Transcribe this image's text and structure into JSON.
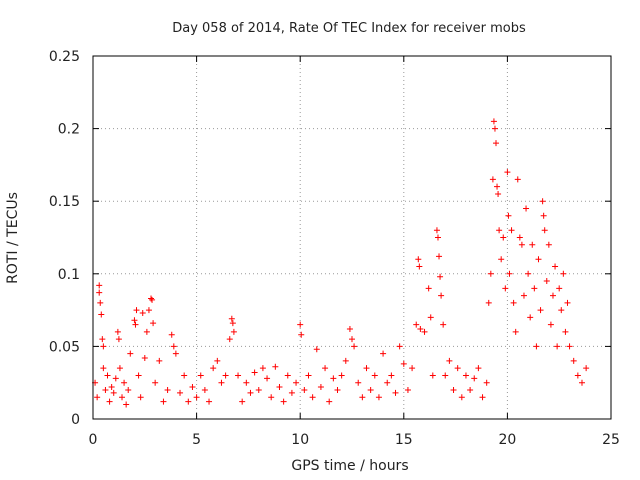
{
  "chart_data": {
    "type": "scatter",
    "title": "Day 058 of 2014, Rate Of TEC Index for receiver mobs",
    "xlabel": "GPS time / hours",
    "ylabel": "ROTI / TECUs",
    "xlim": [
      0,
      25
    ],
    "ylim": [
      0,
      0.25
    ],
    "x_ticks": [
      "0",
      "5",
      "10",
      "15",
      "20",
      "25"
    ],
    "y_ticks": [
      "0",
      "0.05",
      "0.1",
      "0.15",
      "0.2",
      "0.25"
    ],
    "grid": true,
    "marker": "+",
    "color": "#ff0000",
    "series": [
      {
        "points": [
          [
            0.1,
            0.025
          ],
          [
            0.2,
            0.015
          ],
          [
            0.3,
            0.092
          ],
          [
            0.3,
            0.087
          ],
          [
            0.35,
            0.08
          ],
          [
            0.4,
            0.072
          ],
          [
            0.45,
            0.055
          ],
          [
            0.5,
            0.05
          ],
          [
            0.5,
            0.035
          ],
          [
            0.6,
            0.02
          ],
          [
            0.7,
            0.03
          ],
          [
            0.8,
            0.012
          ],
          [
            0.9,
            0.022
          ],
          [
            1.0,
            0.018
          ],
          [
            1.1,
            0.028
          ],
          [
            1.2,
            0.06
          ],
          [
            1.25,
            0.055
          ],
          [
            1.3,
            0.035
          ],
          [
            1.4,
            0.015
          ],
          [
            1.5,
            0.025
          ],
          [
            1.6,
            0.01
          ],
          [
            1.7,
            0.02
          ],
          [
            1.8,
            0.045
          ],
          [
            2.0,
            0.068
          ],
          [
            2.05,
            0.065
          ],
          [
            2.1,
            0.075
          ],
          [
            2.2,
            0.03
          ],
          [
            2.3,
            0.015
          ],
          [
            2.4,
            0.073
          ],
          [
            2.5,
            0.042
          ],
          [
            2.6,
            0.06
          ],
          [
            2.7,
            0.075
          ],
          [
            2.8,
            0.083
          ],
          [
            2.85,
            0.082
          ],
          [
            2.9,
            0.066
          ],
          [
            3.0,
            0.025
          ],
          [
            3.2,
            0.04
          ],
          [
            3.4,
            0.012
          ],
          [
            3.6,
            0.02
          ],
          [
            3.8,
            0.058
          ],
          [
            3.9,
            0.05
          ],
          [
            4.0,
            0.045
          ],
          [
            4.2,
            0.018
          ],
          [
            4.4,
            0.03
          ],
          [
            4.6,
            0.012
          ],
          [
            4.8,
            0.022
          ],
          [
            5.0,
            0.015
          ],
          [
            5.2,
            0.03
          ],
          [
            5.4,
            0.02
          ],
          [
            5.6,
            0.012
          ],
          [
            5.8,
            0.035
          ],
          [
            6.0,
            0.04
          ],
          [
            6.2,
            0.025
          ],
          [
            6.4,
            0.03
          ],
          [
            6.6,
            0.055
          ],
          [
            6.7,
            0.069
          ],
          [
            6.75,
            0.066
          ],
          [
            6.8,
            0.06
          ],
          [
            7.0,
            0.03
          ],
          [
            7.2,
            0.012
          ],
          [
            7.4,
            0.025
          ],
          [
            7.6,
            0.018
          ],
          [
            7.8,
            0.032
          ],
          [
            8.0,
            0.02
          ],
          [
            8.2,
            0.035
          ],
          [
            8.4,
            0.028
          ],
          [
            8.6,
            0.015
          ],
          [
            8.8,
            0.036
          ],
          [
            9.0,
            0.022
          ],
          [
            9.2,
            0.012
          ],
          [
            9.4,
            0.03
          ],
          [
            9.6,
            0.018
          ],
          [
            9.8,
            0.025
          ],
          [
            10.0,
            0.065
          ],
          [
            10.05,
            0.058
          ],
          [
            10.2,
            0.02
          ],
          [
            10.4,
            0.03
          ],
          [
            10.6,
            0.015
          ],
          [
            10.8,
            0.048
          ],
          [
            11.0,
            0.022
          ],
          [
            11.2,
            0.035
          ],
          [
            11.4,
            0.012
          ],
          [
            11.6,
            0.028
          ],
          [
            11.8,
            0.02
          ],
          [
            12.0,
            0.03
          ],
          [
            12.2,
            0.04
          ],
          [
            12.4,
            0.062
          ],
          [
            12.5,
            0.055
          ],
          [
            12.6,
            0.05
          ],
          [
            12.8,
            0.025
          ],
          [
            13.0,
            0.015
          ],
          [
            13.2,
            0.035
          ],
          [
            13.4,
            0.02
          ],
          [
            13.6,
            0.03
          ],
          [
            13.8,
            0.015
          ],
          [
            14.0,
            0.045
          ],
          [
            14.2,
            0.025
          ],
          [
            14.4,
            0.03
          ],
          [
            14.6,
            0.018
          ],
          [
            14.8,
            0.05
          ],
          [
            15.0,
            0.038
          ],
          [
            15.2,
            0.02
          ],
          [
            15.4,
            0.035
          ],
          [
            15.6,
            0.065
          ],
          [
            15.7,
            0.11
          ],
          [
            15.75,
            0.105
          ],
          [
            15.8,
            0.062
          ],
          [
            16.0,
            0.06
          ],
          [
            16.2,
            0.09
          ],
          [
            16.3,
            0.07
          ],
          [
            16.4,
            0.03
          ],
          [
            16.6,
            0.13
          ],
          [
            16.65,
            0.125
          ],
          [
            16.7,
            0.112
          ],
          [
            16.75,
            0.098
          ],
          [
            16.8,
            0.085
          ],
          [
            16.9,
            0.065
          ],
          [
            17.0,
            0.03
          ],
          [
            17.2,
            0.04
          ],
          [
            17.4,
            0.02
          ],
          [
            17.6,
            0.035
          ],
          [
            17.8,
            0.015
          ],
          [
            18.0,
            0.03
          ],
          [
            18.2,
            0.02
          ],
          [
            18.4,
            0.028
          ],
          [
            18.6,
            0.035
          ],
          [
            18.8,
            0.015
          ],
          [
            19.0,
            0.025
          ],
          [
            19.1,
            0.08
          ],
          [
            19.2,
            0.1
          ],
          [
            19.3,
            0.165
          ],
          [
            19.35,
            0.205
          ],
          [
            19.4,
            0.2
          ],
          [
            19.45,
            0.19
          ],
          [
            19.5,
            0.16
          ],
          [
            19.55,
            0.155
          ],
          [
            19.6,
            0.13
          ],
          [
            19.7,
            0.11
          ],
          [
            19.8,
            0.125
          ],
          [
            19.9,
            0.09
          ],
          [
            20.0,
            0.17
          ],
          [
            20.05,
            0.14
          ],
          [
            20.1,
            0.1
          ],
          [
            20.2,
            0.13
          ],
          [
            20.3,
            0.08
          ],
          [
            20.4,
            0.06
          ],
          [
            20.5,
            0.165
          ],
          [
            20.6,
            0.125
          ],
          [
            20.7,
            0.12
          ],
          [
            20.8,
            0.085
          ],
          [
            20.9,
            0.145
          ],
          [
            21.0,
            0.1
          ],
          [
            21.1,
            0.07
          ],
          [
            21.2,
            0.12
          ],
          [
            21.3,
            0.09
          ],
          [
            21.4,
            0.05
          ],
          [
            21.5,
            0.11
          ],
          [
            21.6,
            0.075
          ],
          [
            21.7,
            0.15
          ],
          [
            21.75,
            0.14
          ],
          [
            21.8,
            0.13
          ],
          [
            21.9,
            0.095
          ],
          [
            22.0,
            0.12
          ],
          [
            22.1,
            0.065
          ],
          [
            22.2,
            0.085
          ],
          [
            22.3,
            0.105
          ],
          [
            22.4,
            0.05
          ],
          [
            22.5,
            0.09
          ],
          [
            22.6,
            0.075
          ],
          [
            22.7,
            0.1
          ],
          [
            22.8,
            0.06
          ],
          [
            22.9,
            0.08
          ],
          [
            23.0,
            0.05
          ],
          [
            23.2,
            0.04
          ],
          [
            23.4,
            0.03
          ],
          [
            23.6,
            0.025
          ],
          [
            23.8,
            0.035
          ]
        ]
      }
    ]
  }
}
